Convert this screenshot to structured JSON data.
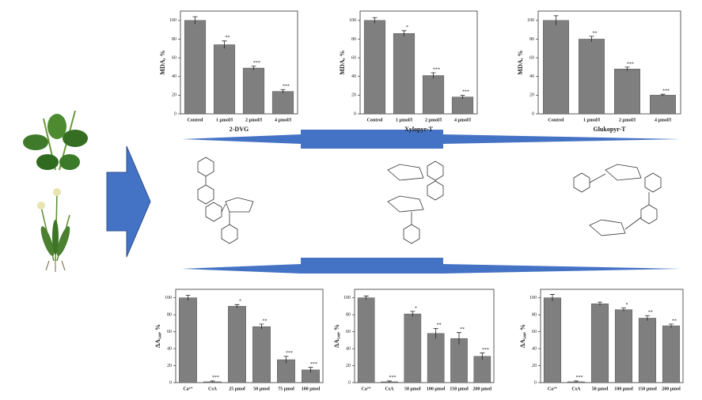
{
  "chart_data": [
    {
      "type": "bar",
      "title": "2-DVG",
      "y_label": "MDA, %",
      "color": "#7f7f7f",
      "categories": [
        "Control",
        "1 μmol/l",
        "2 μmol/l",
        "4 μmol/l"
      ],
      "values": [
        100,
        74,
        49,
        24
      ],
      "errors": [
        4,
        4,
        2,
        2
      ],
      "annotations": [
        null,
        "**",
        "***",
        "***"
      ],
      "ylim": [
        0,
        110
      ],
      "yticks": [
        0,
        20,
        40,
        60,
        80,
        100
      ]
    },
    {
      "type": "bar",
      "title": "Xylopyr-T",
      "y_label": "MDA, %",
      "color": "#7f7f7f",
      "categories": [
        "Control",
        "1 μmol/l",
        "2 μmol/l",
        "4 μmol/l"
      ],
      "values": [
        100,
        86,
        41,
        18
      ],
      "errors": [
        3,
        3,
        3,
        2
      ],
      "annotations": [
        null,
        "*",
        "***",
        "***"
      ],
      "ylim": [
        0,
        110
      ],
      "yticks": [
        0,
        20,
        40,
        60,
        80,
        100
      ]
    },
    {
      "type": "bar",
      "title": "Glukopyr-T",
      "y_label": "MDA, %",
      "color": "#7f7f7f",
      "categories": [
        "Control",
        "1 μmol/l",
        "2 μmol/l",
        "4 μmol/l"
      ],
      "values": [
        100,
        80,
        48,
        20
      ],
      "errors": [
        5,
        3,
        2,
        1
      ],
      "annotations": [
        null,
        "**",
        "***",
        "***"
      ],
      "ylim": [
        0,
        110
      ],
      "yticks": [
        0,
        20,
        40,
        60,
        80,
        100
      ]
    },
    {
      "type": "bar",
      "y_label": "ΔA₅₄₀, %",
      "color": "#7f7f7f",
      "categories": [
        "Ca²⁺",
        "CsA",
        "25 μmol",
        "50 μmol",
        "75 μmol",
        "100 μmol"
      ],
      "values": [
        100,
        1,
        90,
        66,
        27,
        15
      ],
      "errors": [
        3,
        1,
        2,
        3,
        4,
        3
      ],
      "annotations": [
        null,
        "***",
        "*",
        "**",
        "***",
        "***"
      ],
      "ylim": [
        0,
        110
      ],
      "yticks": [
        0,
        20,
        40,
        60,
        80,
        100
      ]
    },
    {
      "type": "bar",
      "y_label": "ΔA₅₄₀, %",
      "color": "#7f7f7f",
      "categories": [
        "Ca²⁺",
        "CsA",
        "50 μmol",
        "100 μmol",
        "150 μmol",
        "200 μmol"
      ],
      "values": [
        100,
        1,
        81,
        58,
        52,
        31
      ],
      "errors": [
        2,
        1,
        3,
        6,
        7,
        4
      ],
      "annotations": [
        null,
        "***",
        "*",
        "**",
        "**",
        "***"
      ],
      "ylim": [
        0,
        110
      ],
      "yticks": [
        0,
        20,
        40,
        60,
        80,
        100
      ]
    },
    {
      "type": "bar",
      "y_label": "ΔA₅₄₀, %",
      "color": "#7f7f7f",
      "categories": [
        "Ca²⁺",
        "CsA",
        "50 μmol",
        "100 μmol",
        "150 μmol",
        "200 μmol"
      ],
      "values": [
        100,
        1,
        93,
        86,
        76,
        67
      ],
      "errors": [
        4,
        1,
        2,
        2,
        3,
        2
      ],
      "annotations": [
        null,
        "***",
        null,
        "*",
        "**",
        "**"
      ],
      "ylim": [
        0,
        110
      ],
      "yticks": [
        0,
        20,
        40,
        60,
        80,
        100
      ]
    }
  ]
}
